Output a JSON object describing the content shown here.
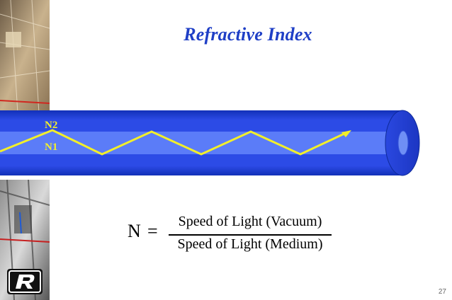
{
  "slide": {
    "title": "Refractive Index",
    "labels": {
      "n2": "N2",
      "n1": "N1"
    },
    "formula": {
      "symbol": "N",
      "equals": "=",
      "numerator": "Speed of Light (Vacuum)",
      "denominator": "Speed of Light (Medium)"
    },
    "page_number": "27"
  },
  "colors": {
    "title": "#1f3fc6",
    "fiber_cladding": "#1f3fd6",
    "fiber_core": "#6a8cff",
    "ray": "#f2ef2a"
  },
  "icons": {
    "logo": "r-logo-icon",
    "fiber": "optical-fiber-icon"
  }
}
